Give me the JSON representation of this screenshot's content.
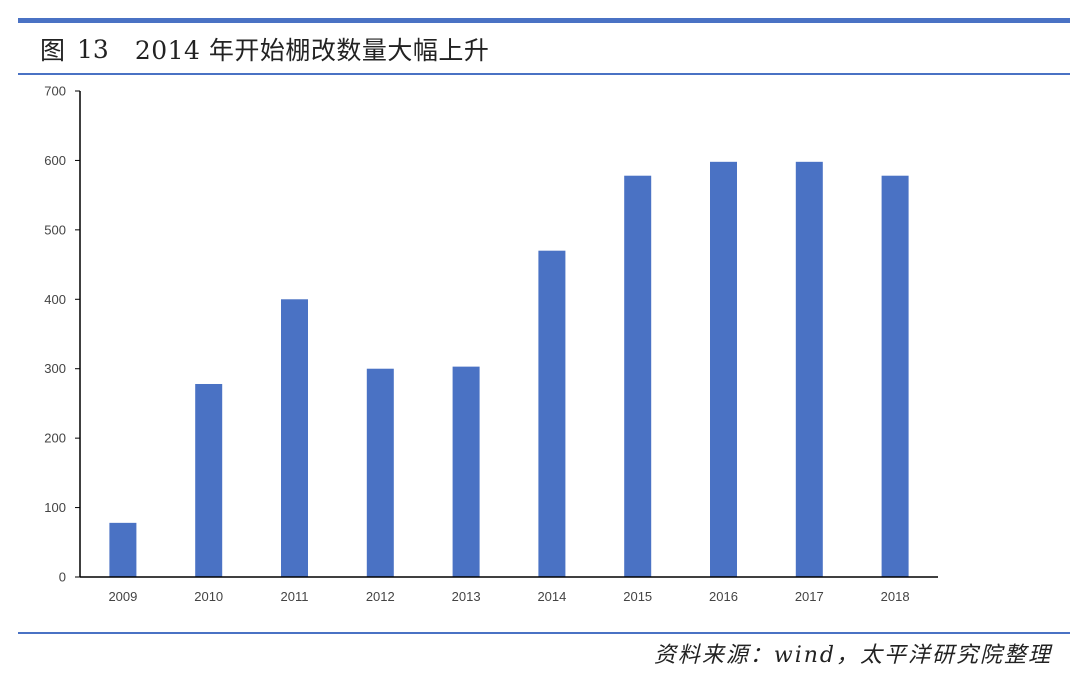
{
  "figure": {
    "label": "图",
    "number": "13",
    "title": "2014 年开始棚改数量大幅上升"
  },
  "source": "资料来源：wind，太平洋研究院整理",
  "colors": {
    "rule": "#4a72c4",
    "bar": "#4a72c4",
    "axis": "#000000",
    "text": "#222222"
  },
  "chart_data": {
    "type": "bar",
    "categories": [
      "2009",
      "2010",
      "2011",
      "2012",
      "2013",
      "2014",
      "2015",
      "2016",
      "2017",
      "2018"
    ],
    "values": [
      78,
      278,
      400,
      300,
      303,
      470,
      578,
      598,
      598,
      578
    ],
    "ylim": [
      0,
      700
    ],
    "yticks": [
      0,
      100,
      200,
      300,
      400,
      500,
      600,
      700
    ],
    "title": "",
    "xlabel": "",
    "ylabel": "",
    "grid": false,
    "legend": "none"
  }
}
